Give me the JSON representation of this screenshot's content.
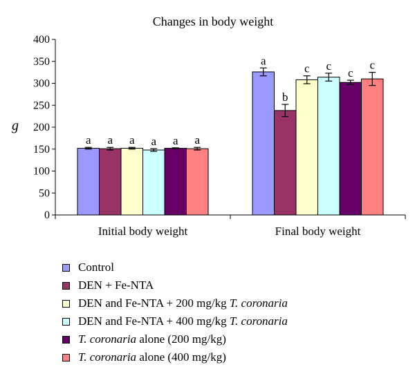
{
  "chart_data": {
    "type": "bar",
    "title": "Changes in body weight",
    "ylabel": "g",
    "xlabel": "",
    "ylim": [
      0,
      400
    ],
    "yticks": [
      0,
      50,
      100,
      150,
      200,
      250,
      300,
      350,
      400
    ],
    "categories": [
      "Initial body weight",
      "Final body weight"
    ],
    "grid": false,
    "legend_position": "bottom",
    "series": [
      {
        "name": "Control",
        "color": "#9999ff",
        "values": [
          152,
          326
        ],
        "errors": [
          2,
          9
        ],
        "labels": [
          "a",
          "a"
        ]
      },
      {
        "name": "DEN + Fe-NTA",
        "color": "#993366",
        "values": [
          151,
          238
        ],
        "errors": [
          3,
          14
        ],
        "labels": [
          "a",
          "b"
        ]
      },
      {
        "name": "DEN and Fe-NTA + 200 mg/kg T. coronaria",
        "color": "#ffffcc",
        "values": [
          152,
          308
        ],
        "errors": [
          2,
          9
        ],
        "labels": [
          "a",
          "c"
        ]
      },
      {
        "name": "DEN and Fe-NTA + 400 mg/kg T. coronaria",
        "color": "#ccffff",
        "values": [
          148,
          314
        ],
        "errors": [
          3,
          9
        ],
        "labels": [
          "a",
          "c"
        ]
      },
      {
        "name": "T. coronaria alone (200 mg/kg)",
        "color": "#660066",
        "values": [
          152,
          302
        ],
        "errors": [
          1,
          5
        ],
        "labels": [
          "a",
          "c"
        ]
      },
      {
        "name": "T. coronaria alone (400 mg/kg)",
        "color": "#ff8080",
        "values": [
          151,
          310
        ],
        "errors": [
          3,
          15
        ],
        "labels": [
          "a",
          "c"
        ]
      }
    ]
  },
  "legend": [
    {
      "plain_before": "Control",
      "italic": "",
      "plain_after": ""
    },
    {
      "plain_before": "DEN + Fe-NTA",
      "italic": "",
      "plain_after": ""
    },
    {
      "plain_before": "DEN and Fe-NTA + 200 mg/kg ",
      "italic": "T. coronaria",
      "plain_after": ""
    },
    {
      "plain_before": "DEN and Fe-NTA + 400 mg/kg ",
      "italic": "T. coronaria",
      "plain_after": ""
    },
    {
      "plain_before": "",
      "italic": "T. coronaria",
      "plain_after": " alone (200 mg/kg)"
    },
    {
      "plain_before": "",
      "italic": "T. coronaria",
      "plain_after": " alone (400 mg/kg)"
    }
  ]
}
